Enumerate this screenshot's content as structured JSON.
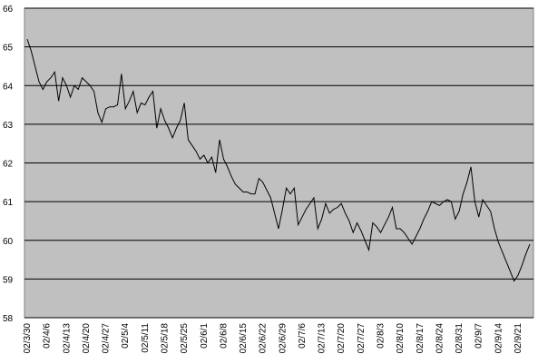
{
  "chart_data": {
    "type": "line",
    "color": "#000000",
    "grid": true,
    "ylim": [
      58,
      66
    ],
    "yticks": [
      58,
      59,
      60,
      61,
      62,
      63,
      64,
      65,
      66
    ],
    "categories": [
      "02/3/30",
      null,
      null,
      null,
      null,
      "02/4/6",
      null,
      null,
      null,
      null,
      "02/4/13",
      null,
      null,
      null,
      null,
      "02/4/20",
      null,
      null,
      null,
      null,
      "02/4/27",
      null,
      null,
      null,
      null,
      "02/5/4",
      null,
      null,
      null,
      null,
      "02/5/11",
      null,
      null,
      null,
      null,
      "02/5/18",
      null,
      null,
      null,
      null,
      "02/5/25",
      null,
      null,
      null,
      null,
      "02/6/1",
      null,
      null,
      null,
      null,
      "02/6/8",
      null,
      null,
      null,
      null,
      "02/6/15",
      null,
      null,
      null,
      null,
      "02/6/22",
      null,
      null,
      null,
      null,
      "02/6/29",
      null,
      null,
      null,
      null,
      "02/7/6",
      null,
      null,
      null,
      null,
      "02/7/13",
      null,
      null,
      null,
      null,
      "02/7/20",
      null,
      null,
      null,
      null,
      "02/7/27",
      null,
      null,
      null,
      null,
      "02/8/3",
      null,
      null,
      null,
      null,
      "02/8/10",
      null,
      null,
      null,
      null,
      "02/8/17",
      null,
      null,
      null,
      null,
      "02/8/24",
      null,
      null,
      null,
      null,
      "02/8/31",
      null,
      null,
      null,
      null,
      "02/9/7",
      null,
      null,
      null,
      null,
      "02/9/14",
      null,
      null,
      null,
      null,
      "02/9/21",
      null,
      null,
      null
    ],
    "values": [
      65.2,
      64.9,
      64.5,
      64.1,
      63.9,
      64.1,
      64.2,
      64.35,
      63.6,
      64.2,
      64.0,
      63.7,
      64.0,
      63.9,
      64.2,
      64.1,
      64.0,
      63.85,
      63.3,
      63.05,
      63.4,
      63.45,
      63.45,
      63.5,
      64.3,
      63.4,
      63.6,
      63.85,
      63.3,
      63.55,
      63.5,
      63.7,
      63.85,
      62.9,
      63.4,
      63.1,
      62.9,
      62.65,
      62.9,
      63.1,
      63.55,
      62.6,
      62.45,
      62.3,
      62.1,
      62.2,
      62.0,
      62.15,
      61.75,
      62.6,
      62.1,
      61.9,
      61.65,
      61.45,
      61.35,
      61.25,
      61.25,
      61.2,
      61.2,
      61.6,
      61.5,
      61.3,
      61.1,
      60.7,
      60.3,
      60.8,
      61.35,
      61.2,
      61.35,
      60.4,
      60.6,
      60.8,
      60.95,
      61.1,
      60.3,
      60.55,
      60.95,
      60.7,
      60.8,
      60.85,
      60.95,
      60.7,
      60.5,
      60.2,
      60.45,
      60.25,
      60.0,
      59.75,
      60.45,
      60.35,
      60.2,
      60.4,
      60.6,
      60.85,
      60.3,
      60.3,
      60.2,
      60.05,
      59.9,
      60.1,
      60.3,
      60.55,
      60.75,
      61.0,
      60.95,
      60.9,
      61.0,
      61.05,
      61.0,
      60.55,
      60.75,
      61.2,
      61.5,
      61.9,
      61.0,
      60.6,
      61.05,
      60.9,
      60.75,
      60.3,
      59.95,
      59.7,
      59.45,
      59.2,
      58.95,
      59.1,
      59.35,
      59.65,
      59.9
    ]
  }
}
